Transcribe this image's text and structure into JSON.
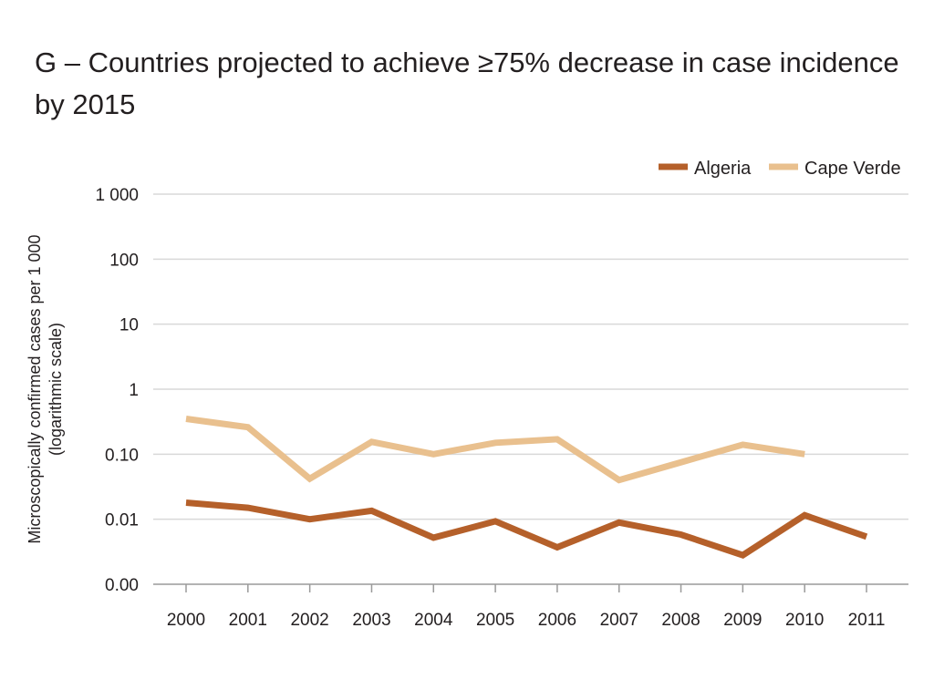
{
  "chart_data": {
    "type": "line",
    "title": "G – Countries projected to achieve ≥75% decrease in case incidence by 2015",
    "ylabel_line1": "Microscopically confirmed cases per 1 000",
    "ylabel_line2": "(logarithmic scale)",
    "xlabel": "",
    "y_scale": "log",
    "ylim": [
      0.001,
      1000
    ],
    "y_ticks": [
      {
        "value": 1000,
        "label": "1 000"
      },
      {
        "value": 100,
        "label": "100"
      },
      {
        "value": 10,
        "label": "10"
      },
      {
        "value": 1,
        "label": "1"
      },
      {
        "value": 0.1,
        "label": "0.10"
      },
      {
        "value": 0.01,
        "label": "0.01"
      },
      {
        "value": 0.001,
        "label": "0.00"
      }
    ],
    "grid": true,
    "legend_position": "top-right",
    "categories": [
      "2000",
      "2001",
      "2002",
      "2003",
      "2004",
      "2005",
      "2006",
      "2007",
      "2008",
      "2009",
      "2010",
      "2011"
    ],
    "series": [
      {
        "name": "Algeria",
        "color": "#b5602a",
        "values": [
          0.018,
          0.015,
          0.01,
          0.0135,
          0.0052,
          0.0093,
          0.0037,
          0.0089,
          0.0058,
          0.0028,
          0.0115,
          0.0054
        ]
      },
      {
        "name": "Cape Verde",
        "color": "#e9c08e",
        "values": [
          0.35,
          0.26,
          0.042,
          0.155,
          0.1,
          0.15,
          0.17,
          0.04,
          0.075,
          0.14,
          0.1,
          null
        ]
      }
    ]
  }
}
